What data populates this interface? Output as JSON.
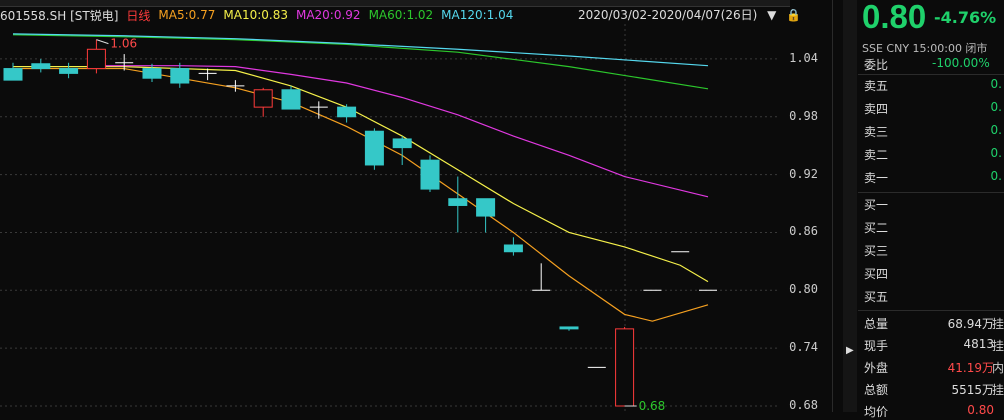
{
  "stock": {
    "code_name": "601558.SH [ST锐电]",
    "period": "日线"
  },
  "ma": [
    {
      "label": "MA5:0.77",
      "color": "#f5a020"
    },
    {
      "label": "MA10:0.83",
      "color": "#f5f04a"
    },
    {
      "label": "MA20:0.92",
      "color": "#e038e0"
    },
    {
      "label": "MA60:1.02",
      "color": "#2cc72c"
    },
    {
      "label": "MA120:1.04",
      "color": "#55d8ee"
    }
  ],
  "range_text": "2020/03/02-2020/04/07(26日)",
  "y_ticks": [
    "1.04",
    "0.98",
    "0.92",
    "0.86",
    "0.80",
    "0.74",
    "0.68"
  ],
  "annotations": {
    "high": "1.06",
    "low": "0.68"
  },
  "quote": {
    "price": "0.80",
    "change_pct": "-4.76%",
    "meta": "SSE  CNY  15:00:00  闭市",
    "weibi_label": "委比",
    "weibi_value": "-100.00%"
  },
  "sell_rows": [
    {
      "label": "卖五",
      "value": "0."
    },
    {
      "label": "卖四",
      "value": "0."
    },
    {
      "label": "卖三",
      "value": "0."
    },
    {
      "label": "卖二",
      "value": "0."
    },
    {
      "label": "卖一",
      "value": "0."
    }
  ],
  "buy_rows": [
    {
      "label": "买一"
    },
    {
      "label": "买二"
    },
    {
      "label": "买三"
    },
    {
      "label": "买四"
    },
    {
      "label": "买五"
    }
  ],
  "stats": [
    {
      "label": "总量",
      "value": "68.94万",
      "unit": "挂",
      "color": "#dddddd"
    },
    {
      "label": "现手",
      "value": "4813",
      "unit": "挂",
      "color": "#dddddd"
    },
    {
      "label": "外盘",
      "value": "41.19万",
      "unit": "内",
      "color": "#ff4a4a"
    },
    {
      "label": "总额",
      "value": "5515万",
      "unit": "挂",
      "color": "#dddddd"
    },
    {
      "label": "均价",
      "value": "0.80",
      "unit": "",
      "color": "#ff4a4a"
    }
  ],
  "colors": {
    "up": "#ff3b3b",
    "down": "#35c8c8",
    "neutral": "#ffffff",
    "bg": "#0b0b0b",
    "grid": "#3a3a3a"
  },
  "chart_data": {
    "type": "candlestick",
    "ylim": [
      0.68,
      1.07
    ],
    "candles": [
      {
        "o": 1.03,
        "c": 1.018,
        "h": 1.036,
        "l": 1.018
      },
      {
        "o": 1.035,
        "c": 1.03,
        "h": 1.04,
        "l": 1.026
      },
      {
        "o": 1.03,
        "c": 1.025,
        "h": 1.036,
        "l": 1.02
      },
      {
        "o": 1.03,
        "c": 1.05,
        "h": 1.06,
        "l": 1.025
      },
      {
        "o": 1.036,
        "c": 1.036,
        "h": 1.045,
        "l": 1.028
      },
      {
        "o": 1.03,
        "c": 1.02,
        "h": 1.035,
        "l": 1.016
      },
      {
        "o": 1.03,
        "c": 1.015,
        "h": 1.036,
        "l": 1.01
      },
      {
        "o": 1.025,
        "c": 1.025,
        "h": 1.03,
        "l": 1.018
      },
      {
        "o": 1.012,
        "c": 1.012,
        "h": 1.018,
        "l": 1.006
      },
      {
        "o": 0.99,
        "c": 1.008,
        "h": 1.01,
        "l": 0.98
      },
      {
        "o": 1.008,
        "c": 0.988,
        "h": 1.012,
        "l": 0.988
      },
      {
        "o": 0.99,
        "c": 0.99,
        "h": 0.996,
        "l": 0.978
      },
      {
        "o": 0.99,
        "c": 0.98,
        "h": 0.993,
        "l": 0.974
      },
      {
        "o": 0.965,
        "c": 0.93,
        "h": 0.968,
        "l": 0.925
      },
      {
        "o": 0.957,
        "c": 0.948,
        "h": 0.96,
        "l": 0.93
      },
      {
        "o": 0.935,
        "c": 0.905,
        "h": 0.94,
        "l": 0.902
      },
      {
        "o": 0.895,
        "c": 0.888,
        "h": 0.918,
        "l": 0.86
      },
      {
        "o": 0.895,
        "c": 0.877,
        "h": 0.895,
        "l": 0.86
      },
      {
        "o": 0.847,
        "c": 0.84,
        "h": 0.855,
        "l": 0.836
      },
      {
        "o": 0.8,
        "c": 0.8,
        "h": 0.828,
        "l": 0.8
      },
      {
        "o": 0.762,
        "c": 0.76,
        "h": 0.762,
        "l": 0.758
      },
      {
        "o": 0.72,
        "c": 0.72,
        "h": 0.72,
        "l": 0.72
      },
      {
        "o": 0.68,
        "c": 0.76,
        "h": 0.762,
        "l": 0.68
      },
      {
        "o": 0.8,
        "c": 0.8,
        "h": 0.8,
        "l": 0.8
      },
      {
        "o": 0.84,
        "c": 0.84,
        "h": 0.84,
        "l": 0.84
      },
      {
        "o": 0.8,
        "c": 0.8,
        "h": 0.8,
        "l": 0.8
      }
    ],
    "ma": {
      "MA5": [
        [
          0,
          1.03
        ],
        [
          4,
          1.03
        ],
        [
          8,
          1.01
        ],
        [
          10,
          0.995
        ],
        [
          12,
          0.97
        ],
        [
          14,
          0.94
        ],
        [
          16,
          0.9
        ],
        [
          18,
          0.86
        ],
        [
          20,
          0.815
        ],
        [
          22,
          0.775
        ],
        [
          23,
          0.768
        ],
        [
          25,
          0.785
        ]
      ],
      "MA10": [
        [
          0,
          1.032
        ],
        [
          4,
          1.032
        ],
        [
          8,
          1.028
        ],
        [
          10,
          1.012
        ],
        [
          12,
          0.99
        ],
        [
          14,
          0.96
        ],
        [
          16,
          0.925
        ],
        [
          18,
          0.89
        ],
        [
          20,
          0.86
        ],
        [
          22,
          0.845
        ],
        [
          24,
          0.826
        ],
        [
          25,
          0.809
        ]
      ],
      "MA20": [
        [
          3,
          1.033
        ],
        [
          6,
          1.033
        ],
        [
          8,
          1.032
        ],
        [
          10,
          1.024
        ],
        [
          12,
          1.015
        ],
        [
          14,
          1.0
        ],
        [
          16,
          0.982
        ],
        [
          18,
          0.96
        ],
        [
          20,
          0.94
        ],
        [
          22,
          0.918
        ],
        [
          25,
          0.897
        ]
      ],
      "MA60": [
        [
          0,
          1.065
        ],
        [
          4,
          1.063
        ],
        [
          8,
          1.06
        ],
        [
          12,
          1.055
        ],
        [
          16,
          1.047
        ],
        [
          20,
          1.032
        ],
        [
          25,
          1.009
        ]
      ],
      "MA120": [
        [
          0,
          1.066
        ],
        [
          4,
          1.064
        ],
        [
          8,
          1.061
        ],
        [
          12,
          1.056
        ],
        [
          16,
          1.05
        ],
        [
          20,
          1.043
        ],
        [
          25,
          1.033
        ]
      ]
    }
  }
}
